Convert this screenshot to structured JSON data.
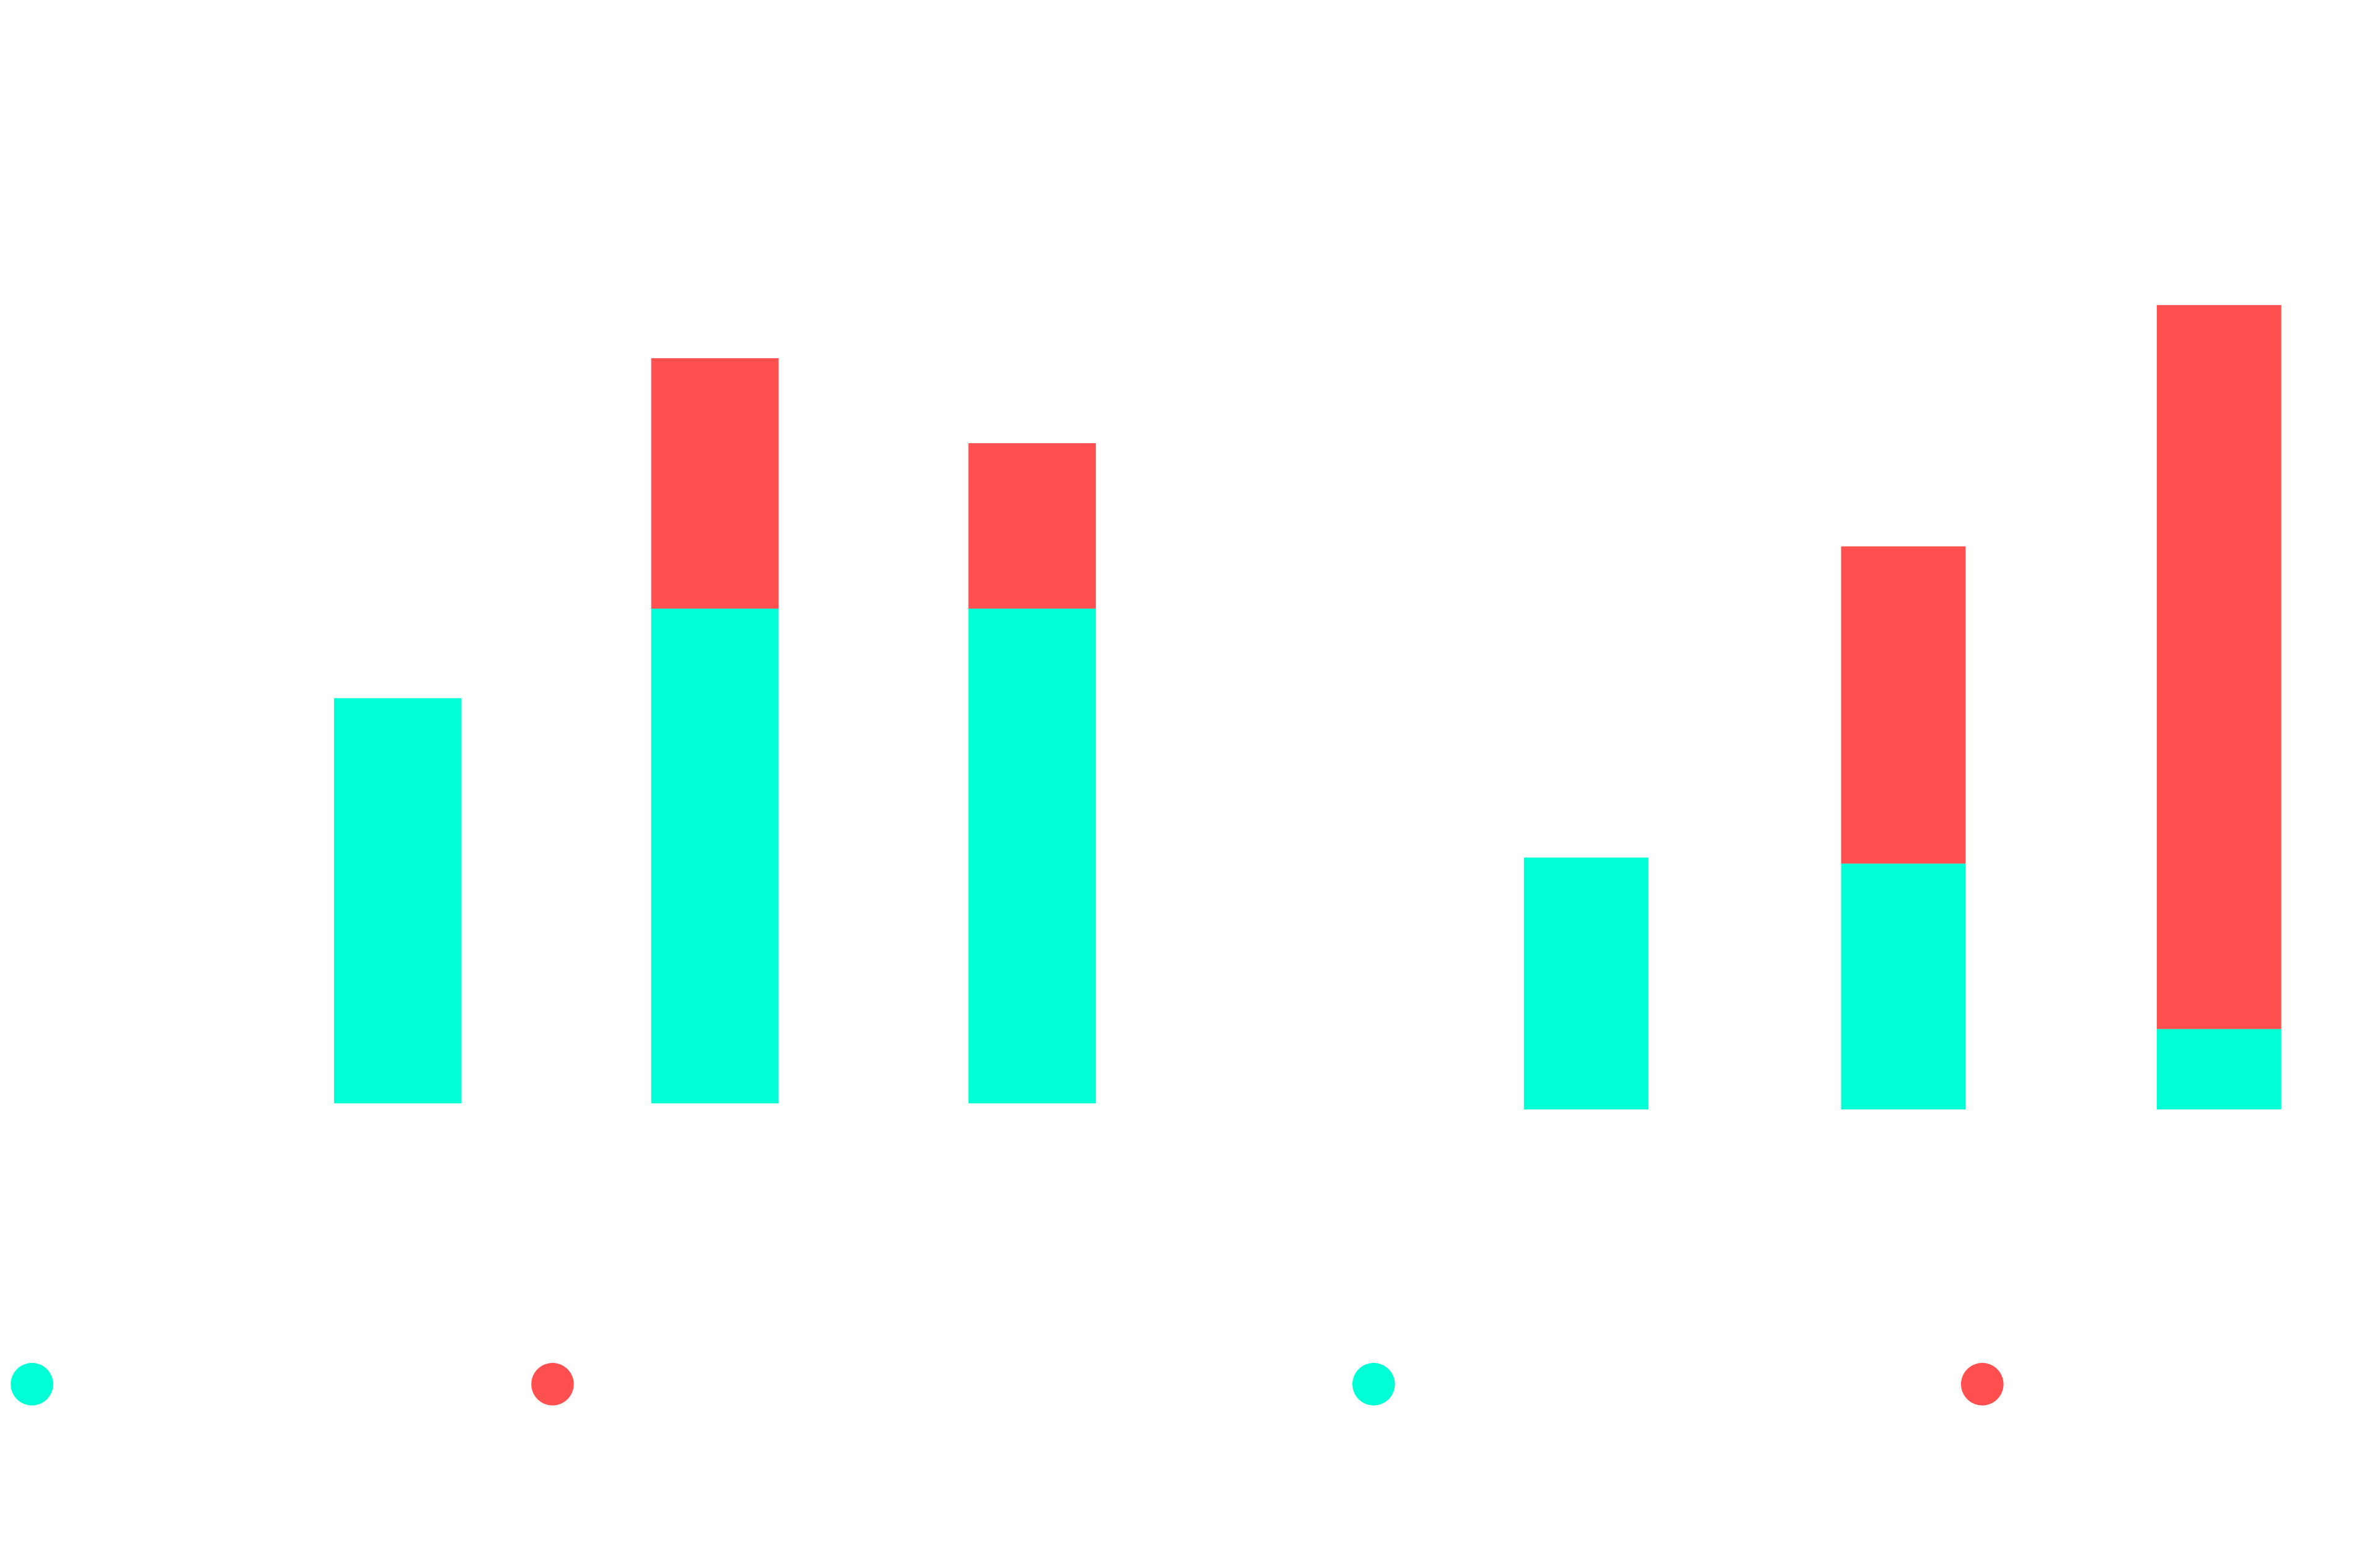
{
  "colors": {
    "series_a": "#00FFD5",
    "series_b": "#FF4F4F",
    "background": "#FFFFFF"
  },
  "chart_data": [
    {
      "type": "bar",
      "stacked": true,
      "categories": [
        "",
        "",
        ""
      ],
      "series": [
        {
          "values": [
            267,
            326,
            326
          ],
          "color": "#00FFD5"
        },
        {
          "values": [
            0,
            165,
            109
          ],
          "color": "#FF4F4F"
        }
      ],
      "ylim": [
        0,
        530
      ],
      "grid": false,
      "legend": "bottom"
    },
    {
      "type": "bar",
      "stacked": true,
      "categories": [
        "",
        "",
        ""
      ],
      "series": [
        {
          "values": [
            166,
            162,
            53
          ],
          "color": "#00FFD5"
        },
        {
          "values": [
            0,
            209,
            477
          ],
          "color": "#FF4F4F"
        }
      ],
      "ylim": [
        0,
        530
      ],
      "grid": false,
      "legend": "bottom"
    }
  ]
}
